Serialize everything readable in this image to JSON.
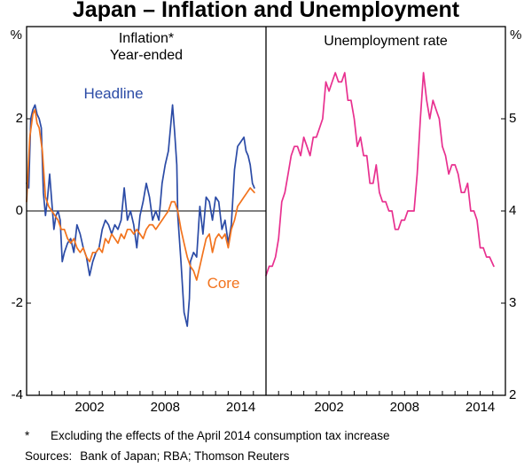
{
  "title": "Japan – Inflation and Unemployment",
  "footnote": {
    "marker": "*",
    "text": "Excluding the effects of the April 2014 consumption tax increase"
  },
  "sources": {
    "label": "Sources:",
    "text": "Bank of Japan; RBA; Thomson Reuters"
  },
  "chart_data": [
    {
      "type": "line",
      "title": "Inflation*",
      "subtitle": "Year-ended",
      "unit": "%",
      "x_range": [
        1997,
        2016
      ],
      "ylim": [
        -4,
        4
      ],
      "yticks": [
        -4,
        -2,
        0,
        2
      ],
      "xticks": [
        2002,
        2008,
        2014
      ],
      "zero_line": true,
      "grid": false,
      "series": [
        {
          "name": "Headline",
          "color": "#2b4ba6",
          "points": [
            [
              1997.0,
              0.6
            ],
            [
              1997.17,
              0.5
            ],
            [
              1997.33,
              2.0
            ],
            [
              1997.5,
              2.2
            ],
            [
              1997.67,
              2.3
            ],
            [
              1997.83,
              2.1
            ],
            [
              1998.0,
              2.0
            ],
            [
              1998.17,
              1.8
            ],
            [
              1998.33,
              0.4
            ],
            [
              1998.5,
              -0.1
            ],
            [
              1998.67,
              0.3
            ],
            [
              1998.83,
              0.8
            ],
            [
              1999.0,
              0.2
            ],
            [
              1999.17,
              -0.4
            ],
            [
              1999.33,
              -0.1
            ],
            [
              1999.5,
              0.0
            ],
            [
              1999.67,
              -0.2
            ],
            [
              1999.83,
              -1.1
            ],
            [
              2000.0,
              -0.9
            ],
            [
              2000.25,
              -0.7
            ],
            [
              2000.5,
              -0.6
            ],
            [
              2000.75,
              -0.9
            ],
            [
              2001.0,
              -0.3
            ],
            [
              2001.25,
              -0.5
            ],
            [
              2001.5,
              -0.8
            ],
            [
              2001.75,
              -1.0
            ],
            [
              2002.0,
              -1.4
            ],
            [
              2002.25,
              -1.1
            ],
            [
              2002.5,
              -0.9
            ],
            [
              2002.75,
              -0.8
            ],
            [
              2003.0,
              -0.4
            ],
            [
              2003.25,
              -0.2
            ],
            [
              2003.5,
              -0.3
            ],
            [
              2003.75,
              -0.5
            ],
            [
              2004.0,
              -0.3
            ],
            [
              2004.25,
              -0.4
            ],
            [
              2004.5,
              -0.2
            ],
            [
              2004.75,
              0.5
            ],
            [
              2005.0,
              -0.2
            ],
            [
              2005.25,
              0.0
            ],
            [
              2005.5,
              -0.3
            ],
            [
              2005.75,
              -0.8
            ],
            [
              2006.0,
              -0.1
            ],
            [
              2006.25,
              0.2
            ],
            [
              2006.5,
              0.6
            ],
            [
              2006.75,
              0.3
            ],
            [
              2007.0,
              -0.2
            ],
            [
              2007.25,
              0.0
            ],
            [
              2007.5,
              -0.2
            ],
            [
              2007.75,
              0.6
            ],
            [
              2008.0,
              1.0
            ],
            [
              2008.25,
              1.3
            ],
            [
              2008.58,
              2.3
            ],
            [
              2008.75,
              1.7
            ],
            [
              2008.92,
              1.0
            ],
            [
              2009.0,
              -0.1
            ],
            [
              2009.25,
              -1.1
            ],
            [
              2009.5,
              -2.2
            ],
            [
              2009.75,
              -2.5
            ],
            [
              2009.92,
              -1.9
            ],
            [
              2010.0,
              -1.1
            ],
            [
              2010.25,
              -0.9
            ],
            [
              2010.5,
              -1.0
            ],
            [
              2010.75,
              0.1
            ],
            [
              2011.0,
              -0.5
            ],
            [
              2011.25,
              0.3
            ],
            [
              2011.5,
              0.2
            ],
            [
              2011.75,
              -0.2
            ],
            [
              2012.0,
              0.3
            ],
            [
              2012.25,
              0.2
            ],
            [
              2012.5,
              -0.4
            ],
            [
              2012.75,
              -0.2
            ],
            [
              2013.0,
              -0.7
            ],
            [
              2013.25,
              -0.3
            ],
            [
              2013.5,
              0.9
            ],
            [
              2013.75,
              1.4
            ],
            [
              2014.0,
              1.5
            ],
            [
              2014.25,
              1.6
            ],
            [
              2014.42,
              1.3
            ],
            [
              2014.58,
              1.2
            ],
            [
              2014.75,
              1.0
            ],
            [
              2014.92,
              0.6
            ],
            [
              2015.08,
              0.5
            ]
          ]
        },
        {
          "name": "Core",
          "color": "#f2731d",
          "points": [
            [
              1997.0,
              0.2
            ],
            [
              1997.25,
              1.6
            ],
            [
              1997.5,
              2.1
            ],
            [
              1997.67,
              2.2
            ],
            [
              1997.83,
              1.9
            ],
            [
              1998.0,
              1.8
            ],
            [
              1998.25,
              1.3
            ],
            [
              1998.5,
              0.3
            ],
            [
              1998.75,
              0.1
            ],
            [
              1999.0,
              0.0
            ],
            [
              1999.25,
              -0.1
            ],
            [
              1999.5,
              -0.2
            ],
            [
              1999.75,
              -0.4
            ],
            [
              2000.0,
              -0.4
            ],
            [
              2000.25,
              -0.6
            ],
            [
              2000.5,
              -0.7
            ],
            [
              2000.75,
              -0.6
            ],
            [
              2001.0,
              -0.8
            ],
            [
              2001.25,
              -0.9
            ],
            [
              2001.5,
              -0.8
            ],
            [
              2001.75,
              -1.0
            ],
            [
              2002.0,
              -1.1
            ],
            [
              2002.25,
              -0.9
            ],
            [
              2002.5,
              -0.9
            ],
            [
              2002.75,
              -0.8
            ],
            [
              2003.0,
              -0.9
            ],
            [
              2003.25,
              -0.6
            ],
            [
              2003.5,
              -0.7
            ],
            [
              2003.75,
              -0.5
            ],
            [
              2004.0,
              -0.6
            ],
            [
              2004.25,
              -0.7
            ],
            [
              2004.5,
              -0.5
            ],
            [
              2004.75,
              -0.6
            ],
            [
              2005.0,
              -0.4
            ],
            [
              2005.25,
              -0.4
            ],
            [
              2005.5,
              -0.5
            ],
            [
              2005.75,
              -0.4
            ],
            [
              2006.0,
              -0.5
            ],
            [
              2006.25,
              -0.6
            ],
            [
              2006.5,
              -0.4
            ],
            [
              2006.75,
              -0.3
            ],
            [
              2007.0,
              -0.3
            ],
            [
              2007.25,
              -0.4
            ],
            [
              2007.5,
              -0.3
            ],
            [
              2007.75,
              -0.2
            ],
            [
              2008.0,
              -0.1
            ],
            [
              2008.25,
              0.0
            ],
            [
              2008.5,
              0.2
            ],
            [
              2008.75,
              0.2
            ],
            [
              2009.0,
              0.0
            ],
            [
              2009.25,
              -0.4
            ],
            [
              2009.5,
              -0.7
            ],
            [
              2009.75,
              -1.0
            ],
            [
              2010.0,
              -1.2
            ],
            [
              2010.25,
              -1.3
            ],
            [
              2010.5,
              -1.5
            ],
            [
              2010.75,
              -1.2
            ],
            [
              2011.0,
              -0.9
            ],
            [
              2011.25,
              -0.6
            ],
            [
              2011.5,
              -0.5
            ],
            [
              2011.75,
              -0.9
            ],
            [
              2012.0,
              -0.6
            ],
            [
              2012.25,
              -0.5
            ],
            [
              2012.5,
              -0.6
            ],
            [
              2012.75,
              -0.5
            ],
            [
              2013.0,
              -0.8
            ],
            [
              2013.25,
              -0.4
            ],
            [
              2013.5,
              -0.2
            ],
            [
              2013.75,
              0.1
            ],
            [
              2014.0,
              0.2
            ],
            [
              2014.25,
              0.3
            ],
            [
              2014.5,
              0.4
            ],
            [
              2014.75,
              0.5
            ],
            [
              2015.08,
              0.4
            ]
          ]
        }
      ]
    },
    {
      "type": "line",
      "title": "Unemployment rate",
      "unit": "%",
      "x_range": [
        1997,
        2016
      ],
      "ylim": [
        2,
        6
      ],
      "yticks": [
        2,
        3,
        4,
        5
      ],
      "xticks": [
        2002,
        2008,
        2014
      ],
      "zero_line": false,
      "grid": false,
      "series": [
        {
          "name": "Unemployment rate",
          "color": "#e8308f",
          "points": [
            [
              1997.0,
              3.3
            ],
            [
              1997.25,
              3.4
            ],
            [
              1997.5,
              3.4
            ],
            [
              1997.75,
              3.5
            ],
            [
              1998.0,
              3.7
            ],
            [
              1998.25,
              4.1
            ],
            [
              1998.5,
              4.2
            ],
            [
              1998.75,
              4.4
            ],
            [
              1999.0,
              4.6
            ],
            [
              1999.25,
              4.7
            ],
            [
              1999.5,
              4.7
            ],
            [
              1999.75,
              4.6
            ],
            [
              2000.0,
              4.8
            ],
            [
              2000.25,
              4.7
            ],
            [
              2000.5,
              4.6
            ],
            [
              2000.75,
              4.8
            ],
            [
              2001.0,
              4.8
            ],
            [
              2001.25,
              4.9
            ],
            [
              2001.5,
              5.0
            ],
            [
              2001.75,
              5.4
            ],
            [
              2002.0,
              5.3
            ],
            [
              2002.25,
              5.4
            ],
            [
              2002.5,
              5.5
            ],
            [
              2002.75,
              5.4
            ],
            [
              2003.0,
              5.4
            ],
            [
              2003.25,
              5.5
            ],
            [
              2003.5,
              5.2
            ],
            [
              2003.75,
              5.2
            ],
            [
              2004.0,
              5.0
            ],
            [
              2004.25,
              4.7
            ],
            [
              2004.5,
              4.8
            ],
            [
              2004.75,
              4.6
            ],
            [
              2005.0,
              4.6
            ],
            [
              2005.25,
              4.3
            ],
            [
              2005.5,
              4.3
            ],
            [
              2005.75,
              4.5
            ],
            [
              2006.0,
              4.2
            ],
            [
              2006.25,
              4.1
            ],
            [
              2006.5,
              4.1
            ],
            [
              2006.75,
              4.0
            ],
            [
              2007.0,
              4.0
            ],
            [
              2007.25,
              3.8
            ],
            [
              2007.5,
              3.8
            ],
            [
              2007.75,
              3.9
            ],
            [
              2008.0,
              3.9
            ],
            [
              2008.25,
              4.0
            ],
            [
              2008.5,
              4.0
            ],
            [
              2008.75,
              4.0
            ],
            [
              2009.0,
              4.4
            ],
            [
              2009.25,
              5.0
            ],
            [
              2009.5,
              5.5
            ],
            [
              2009.75,
              5.2
            ],
            [
              2010.0,
              5.0
            ],
            [
              2010.25,
              5.2
            ],
            [
              2010.5,
              5.1
            ],
            [
              2010.75,
              5.0
            ],
            [
              2011.0,
              4.7
            ],
            [
              2011.25,
              4.6
            ],
            [
              2011.5,
              4.4
            ],
            [
              2011.75,
              4.5
            ],
            [
              2012.0,
              4.5
            ],
            [
              2012.25,
              4.4
            ],
            [
              2012.5,
              4.2
            ],
            [
              2012.75,
              4.2
            ],
            [
              2013.0,
              4.3
            ],
            [
              2013.25,
              4.0
            ],
            [
              2013.5,
              4.0
            ],
            [
              2013.75,
              3.9
            ],
            [
              2014.0,
              3.6
            ],
            [
              2014.25,
              3.6
            ],
            [
              2014.5,
              3.5
            ],
            [
              2014.75,
              3.5
            ],
            [
              2015.08,
              3.4
            ]
          ]
        }
      ]
    }
  ]
}
